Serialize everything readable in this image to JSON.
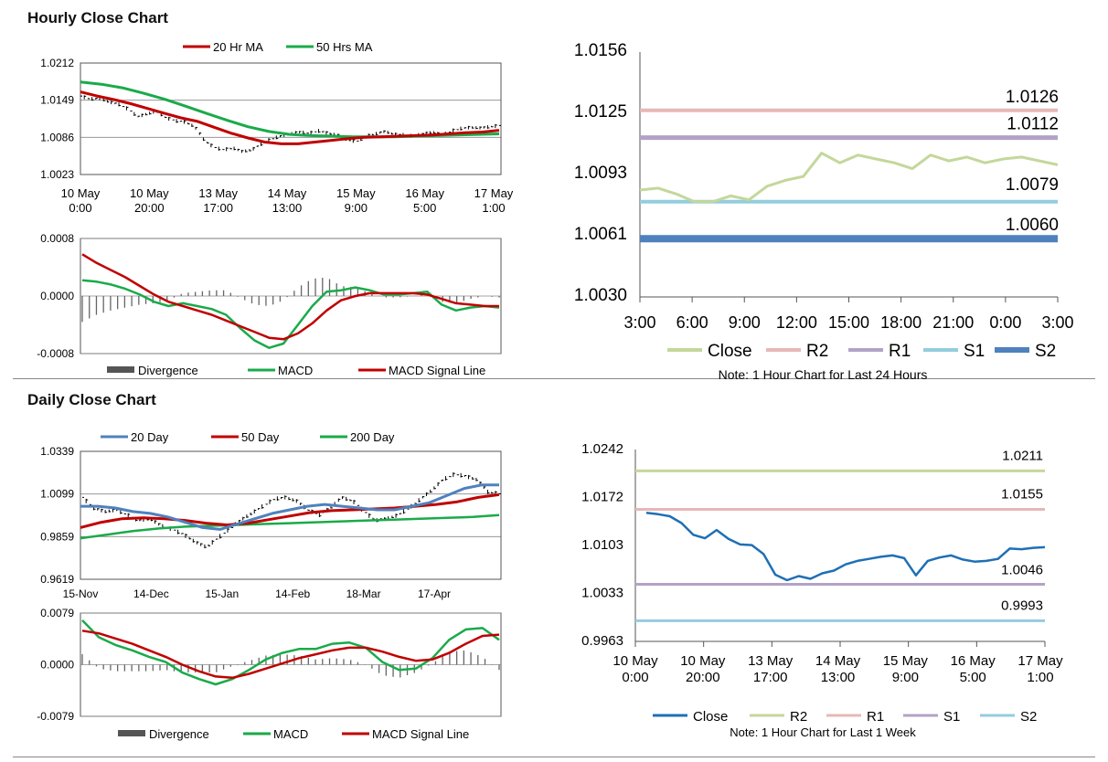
{
  "sections": {
    "hourly_title": "Hourly Close Chart",
    "daily_title": "Daily Close Chart"
  },
  "colors": {
    "red": "#c00000",
    "green": "#1aaa4a",
    "blue": "#4f81bd",
    "black": "#000000",
    "grey": "#666666",
    "close_light": "#c4d79b",
    "r2": "#e6b8b7",
    "r1": "#b3a2c7",
    "s1": "#93cddd",
    "s2": "#4f81bd",
    "close_blue": "#1f6fb5"
  },
  "chart_data": [
    {
      "id": "hourly-ma",
      "type": "line",
      "legend": [
        "20 Hr MA",
        "50 Hrs MA"
      ],
      "y_ticks": [
        "1.0212",
        "1.0149",
        "1.0086",
        "1.0023"
      ],
      "ylim": [
        1.0023,
        1.0212
      ],
      "x_ticks": [
        [
          "10 May",
          "0:00"
        ],
        [
          "10 May",
          "20:00"
        ],
        [
          "13 May",
          "17:00"
        ],
        [
          "14 May",
          "13:00"
        ],
        [
          "15 May",
          "9:00"
        ],
        [
          "16 May",
          "5:00"
        ],
        [
          "17 May",
          "1:00"
        ]
      ],
      "series": [
        {
          "name": "Close",
          "values": [
            1.0156,
            1.0151,
            1.0152,
            1.0146,
            1.0142,
            1.0134,
            1.0121,
            1.0126,
            1.013,
            1.0119,
            1.0114,
            1.0112,
            1.0104,
            1.0081,
            1.0069,
            1.0065,
            1.0068,
            1.0062,
            1.0065,
            1.0075,
            1.0083,
            1.0088,
            1.0092,
            1.0095,
            1.0093,
            1.0097,
            1.0093,
            1.009,
            1.0082,
            1.0079,
            1.0088,
            1.0092,
            1.0096,
            1.0091,
            1.009,
            1.0088,
            1.0092,
            1.0095,
            1.009,
            1.0097,
            1.0101,
            1.0103,
            1.0102,
            1.0104,
            1.0106
          ]
        },
        {
          "name": "20 Hr MA",
          "values": [
            1.0163,
            1.0156,
            1.015,
            1.0143,
            1.0135,
            1.0127,
            1.0119,
            1.0113,
            1.0103,
            1.0093,
            1.0085,
            1.0078,
            1.0075,
            1.0075,
            1.0078,
            1.0081,
            1.0084,
            1.0086,
            1.0087,
            1.0088,
            1.0089,
            1.009,
            1.0092,
            1.0094,
            1.0095,
            1.0098
          ]
        },
        {
          "name": "50 Hrs MA",
          "values": [
            1.018,
            1.0176,
            1.017,
            1.0161,
            1.0151,
            1.0139,
            1.0127,
            1.0115,
            1.0104,
            1.0096,
            1.0091,
            1.0089,
            1.0088,
            1.0087,
            1.0087,
            1.0087,
            1.0088,
            1.0089,
            1.009,
            1.0091,
            1.0092
          ]
        }
      ]
    },
    {
      "id": "hourly-macd",
      "type": "line",
      "legend": [
        "Divergence",
        "MACD",
        "MACD Signal Line"
      ],
      "y_ticks": [
        "0.0008",
        "0.0000",
        "-0.0008"
      ],
      "ylim": [
        -0.0008,
        0.0008
      ],
      "series": [
        {
          "name": "MACD",
          "values": [
            0.00022,
            0.0002,
            0.00016,
            0.0001,
            2e-05,
            -8e-05,
            -0.00014,
            -0.0001,
            -0.00014,
            -0.00018,
            -0.00026,
            -0.00045,
            -0.00062,
            -0.00072,
            -0.00066,
            -0.0004,
            -0.00014,
            6e-05,
            8e-05,
            0.00012,
            8e-05,
            2e-05,
            2e-05,
            4e-05,
            6e-05,
            -0.00012,
            -0.0002,
            -0.00016,
            -0.00014,
            -0.00016
          ]
        },
        {
          "name": "MACD Signal Line",
          "values": [
            0.00058,
            0.00046,
            0.00036,
            0.00026,
            0.00014,
            2e-05,
            -8e-05,
            -0.00014,
            -0.0002,
            -0.00026,
            -0.00034,
            -0.00042,
            -0.0005,
            -0.00058,
            -0.0006,
            -0.00052,
            -0.00038,
            -0.0002,
            -6e-05,
            0.0,
            4e-05,
            4e-05,
            4e-05,
            4e-05,
            2e-05,
            -4e-05,
            -0.0001,
            -0.00012,
            -0.00014,
            -0.00014
          ]
        }
      ]
    },
    {
      "id": "hourly-levels",
      "type": "line",
      "y_ticks": [
        "1.0156",
        "1.0125",
        "1.0093",
        "1.0061",
        "1.0030"
      ],
      "ylim": [
        1.003,
        1.0156
      ],
      "x_ticks": [
        "3:00",
        "6:00",
        "9:00",
        "12:00",
        "15:00",
        "18:00",
        "21:00",
        "0:00",
        "3:00"
      ],
      "levels": [
        {
          "name": "R2",
          "value": 1.0126,
          "label": "1.0126"
        },
        {
          "name": "R1",
          "value": 1.0112,
          "label": "1.0112"
        },
        {
          "name": "S1",
          "value": 1.0079,
          "label": "1.0079"
        },
        {
          "name": "S2",
          "value": 1.006,
          "label": "1.0060"
        }
      ],
      "series": [
        {
          "name": "Close",
          "values": [
            1.0085,
            1.0086,
            1.0083,
            1.0079,
            1.0079,
            1.0082,
            1.008,
            1.0087,
            1.009,
            1.0092,
            1.0104,
            1.0099,
            1.0103,
            1.0101,
            1.0099,
            1.0096,
            1.0103,
            1.01,
            1.0102,
            1.0099,
            1.0101,
            1.0102,
            1.01,
            1.0098
          ]
        }
      ],
      "legend": [
        "Close",
        "R2",
        "R1",
        "S1",
        "S2"
      ],
      "note": "Note: 1 Hour Chart for Last 24 Hours"
    },
    {
      "id": "daily-ma",
      "type": "line",
      "legend": [
        "20 Day",
        "50 Day",
        "200 Day"
      ],
      "y_ticks": [
        "1.0339",
        "1.0099",
        "0.9859",
        "0.9619"
      ],
      "ylim": [
        0.9619,
        1.0339
      ],
      "x_ticks": [
        "15-Nov",
        "14-Dec",
        "15-Jan",
        "14-Feb",
        "18-Mar",
        "17-Apr"
      ],
      "series": [
        {
          "name": "Close",
          "values": [
            1.008,
            1.002,
            1.0,
            1.001,
            0.998,
            0.995,
            0.996,
            0.992,
            0.99,
            0.987,
            0.983,
            0.98,
            0.985,
            0.99,
            0.995,
            0.999,
            1.003,
            1.007,
            1.008,
            1.006,
            1.001,
            0.998,
            1.002,
            1.008,
            1.006,
            1.0,
            0.995,
            0.996,
            0.998,
            1.002,
            1.007,
            1.012,
            1.018,
            1.021,
            1.02,
            1.018,
            1.011,
            1.01
          ]
        },
        {
          "name": "20 Day",
          "values": [
            1.003,
            1.003,
            1.002,
            1.0,
            0.999,
            0.997,
            0.994,
            0.991,
            0.99,
            0.993,
            0.996,
            0.999,
            1.001,
            1.003,
            1.004,
            1.003,
            1.002,
            1.001,
            1.001,
            1.003,
            1.005,
            1.009,
            1.013,
            1.015,
            1.015
          ]
        },
        {
          "name": "50 Day",
          "values": [
            0.991,
            0.994,
            0.996,
            0.9965,
            0.996,
            0.995,
            0.9935,
            0.9925,
            0.9935,
            0.9955,
            0.9975,
            0.9995,
            1.0005,
            1.001,
            1.0015,
            1.002,
            1.003,
            1.004,
            1.0055,
            1.008,
            1.0095
          ]
        },
        {
          "name": "200 Day",
          "values": [
            0.985,
            0.987,
            0.989,
            0.9905,
            0.9915,
            0.992,
            0.9925,
            0.993,
            0.9935,
            0.994,
            0.9945,
            0.995,
            0.9955,
            0.996,
            0.9965,
            0.997,
            0.998
          ]
        }
      ]
    },
    {
      "id": "daily-macd",
      "type": "line",
      "legend": [
        "Divergence",
        "MACD",
        "MACD Signal Line"
      ],
      "y_ticks": [
        "0.0079",
        "0.0000",
        "-0.0079"
      ],
      "ylim": [
        -0.0079,
        0.0079
      ],
      "series": [
        {
          "name": "MACD",
          "values": [
            0.0068,
            0.0042,
            0.003,
            0.0022,
            0.0012,
            0.0004,
            -0.0012,
            -0.0022,
            -0.003,
            -0.0022,
            -0.0008,
            0.0008,
            0.0018,
            0.0024,
            0.0024,
            0.0032,
            0.0034,
            0.0026,
            0.0004,
            -0.0008,
            -0.0006,
            0.001,
            0.0038,
            0.0054,
            0.0056,
            0.0038
          ]
        },
        {
          "name": "MACD Signal Line",
          "values": [
            0.0052,
            0.0048,
            0.004,
            0.0032,
            0.0022,
            0.0012,
            0.0,
            -0.001,
            -0.0018,
            -0.002,
            -0.0014,
            -0.0006,
            0.0002,
            0.001,
            0.0016,
            0.0022,
            0.0026,
            0.0026,
            0.002,
            0.0012,
            0.0006,
            0.0008,
            0.0018,
            0.0032,
            0.0044,
            0.0046
          ]
        }
      ]
    },
    {
      "id": "daily-levels",
      "type": "line",
      "y_ticks": [
        "1.0242",
        "1.0172",
        "1.0103",
        "1.0033",
        "0.9963"
      ],
      "ylim": [
        0.9963,
        1.0242
      ],
      "x_ticks": [
        [
          "10 May",
          "0:00"
        ],
        [
          "10 May",
          "20:00"
        ],
        [
          "13 May",
          "17:00"
        ],
        [
          "14 May",
          "13:00"
        ],
        [
          "15 May",
          "9:00"
        ],
        [
          "16 May",
          "5:00"
        ],
        [
          "17 May",
          "1:00"
        ]
      ],
      "levels": [
        {
          "name": "R2",
          "value": 1.0211,
          "label": "1.0211"
        },
        {
          "name": "R1",
          "value": 1.0155,
          "label": "1.0155"
        },
        {
          "name": "S1",
          "value": 1.0046,
          "label": "1.0046"
        },
        {
          "name": "S2",
          "value": 0.9993,
          "label": "0.9993"
        }
      ],
      "series": [
        {
          "name": "Close",
          "values": [
            1.015,
            1.0148,
            1.0145,
            1.0135,
            1.0118,
            1.0113,
            1.0125,
            1.0112,
            1.0104,
            1.0103,
            1.009,
            1.006,
            1.0052,
            1.0058,
            1.0054,
            1.0062,
            1.0066,
            1.0075,
            1.008,
            1.0083,
            1.0086,
            1.0088,
            1.0084,
            1.0059,
            1.008,
            1.0085,
            1.0088,
            1.0082,
            1.0079,
            1.008,
            1.0083,
            1.0098,
            1.0097,
            1.0099,
            1.01
          ]
        }
      ],
      "legend": [
        "Close",
        "R2",
        "R1",
        "S1",
        "S2"
      ],
      "note": "Note: 1 Hour Chart for Last 1 Week"
    }
  ]
}
